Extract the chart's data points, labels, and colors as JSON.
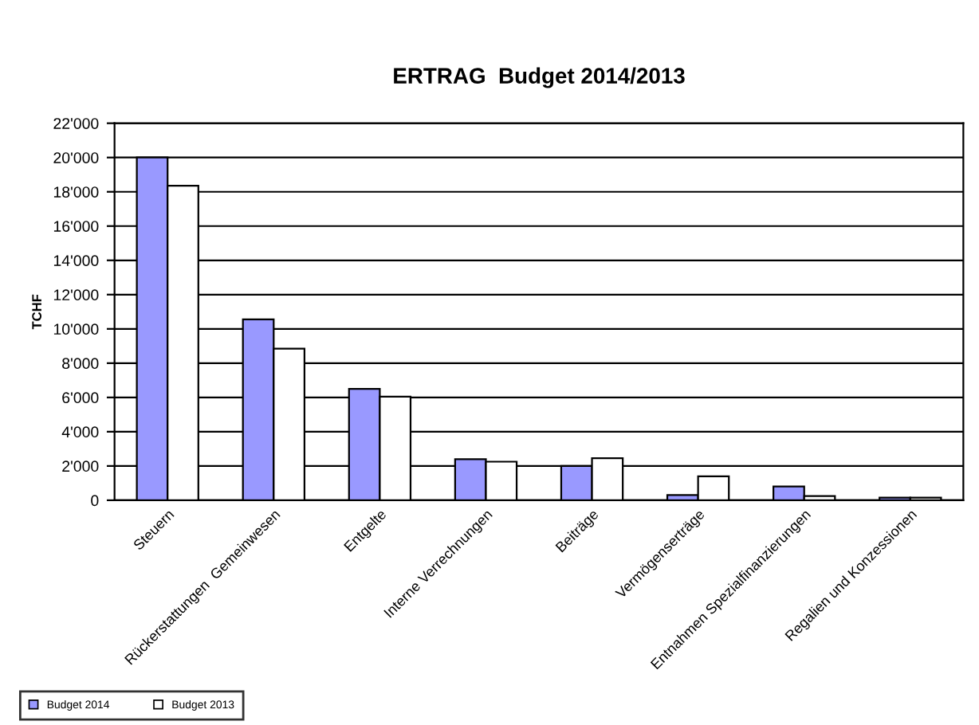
{
  "chart_data": {
    "type": "bar",
    "title": "ERTRAG  Budget 2014/2013",
    "ylabel": "TCHF",
    "categories": [
      "Steuern",
      "Rückerstattungen  Gemeinwesen",
      "Entgelte",
      "Interne Verrechnungen",
      "Beiträge",
      "Vermögenserträge",
      "Entnahmen Spezialfinanzierungen",
      "Regalien und Konzessionen"
    ],
    "series": [
      {
        "name": "Budget 2014",
        "color": "#9999ff",
        "values": [
          20000,
          10550,
          6500,
          2400,
          2000,
          300,
          800,
          150
        ]
      },
      {
        "name": "Budget 2013",
        "color": "#ffffff",
        "values": [
          18350,
          8850,
          6050,
          2250,
          2450,
          1400,
          250,
          150
        ]
      }
    ],
    "ylim": [
      0,
      22000
    ],
    "yticks": [
      {
        "value": 0,
        "label": "0"
      },
      {
        "value": 2000,
        "label": "2'000"
      },
      {
        "value": 4000,
        "label": "4'000"
      },
      {
        "value": 6000,
        "label": "6'000"
      },
      {
        "value": 8000,
        "label": "8'000"
      },
      {
        "value": 10000,
        "label": "10'000"
      },
      {
        "value": 12000,
        "label": "12'000"
      },
      {
        "value": 14000,
        "label": "14'000"
      },
      {
        "value": 16000,
        "label": "16'000"
      },
      {
        "value": 18000,
        "label": "18'000"
      },
      {
        "value": 20000,
        "label": "20'000"
      },
      {
        "value": 22000,
        "label": "22'000"
      }
    ],
    "grid": "y",
    "legend": "bottom left"
  }
}
